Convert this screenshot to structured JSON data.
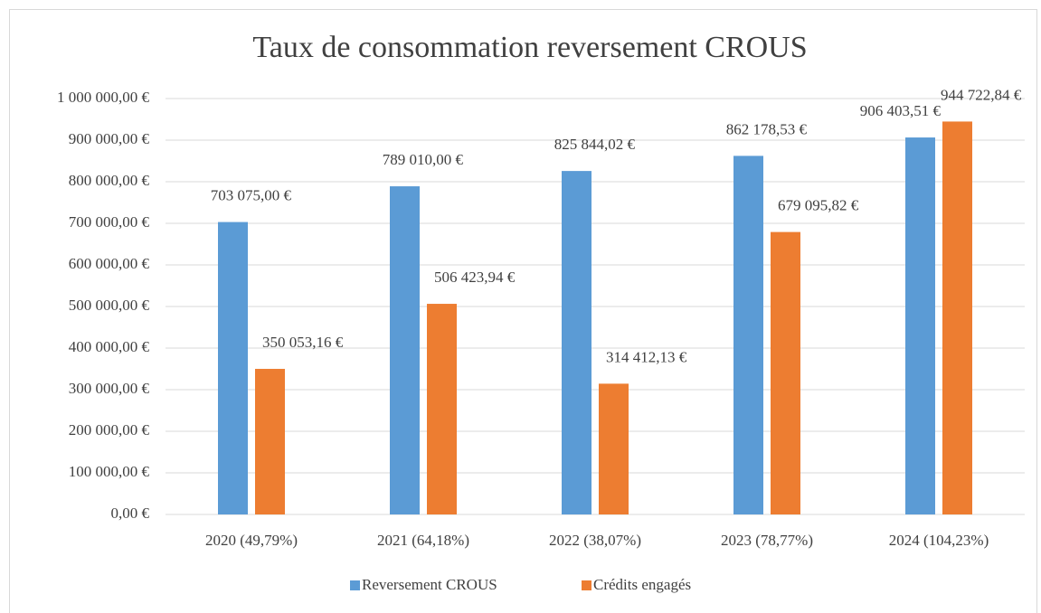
{
  "chart_data": {
    "type": "bar",
    "title": "Taux de consommation reversement CROUS",
    "categories": [
      "2020 (49,79%)",
      "2021 (64,18%)",
      "2022 (38,07%)",
      "2023 (78,77%)",
      "2024 (104,23%)"
    ],
    "series": [
      {
        "name": "Reversement CROUS",
        "color": "#5b9bd5",
        "values": [
          703075,
          789010,
          825844.02,
          862178.53,
          906403.51
        ],
        "value_labels": [
          "703 075,00 €",
          "789 010,00 €",
          "825 844,02 €",
          "862 178,53 €",
          "906 403,51 €"
        ]
      },
      {
        "name": "Crédits engagés",
        "color": "#ed7d31",
        "values": [
          350053.16,
          506423.94,
          314412.13,
          679095.82,
          944722.84
        ],
        "value_labels": [
          "350 053,16 €",
          "506 423,94 €",
          "314 412,13 €",
          "679 095,82 €",
          "944 722,84 €"
        ]
      }
    ],
    "ylim": [
      0,
      1000000
    ],
    "yticks": [
      {
        "value": 0,
        "label": "0,00 €"
      },
      {
        "value": 100000,
        "label": "100 000,00 €"
      },
      {
        "value": 200000,
        "label": "200 000,00 €"
      },
      {
        "value": 300000,
        "label": "300 000,00 €"
      },
      {
        "value": 400000,
        "label": "400 000,00 €"
      },
      {
        "value": 500000,
        "label": "500 000,00 €"
      },
      {
        "value": 600000,
        "label": "600 000,00 €"
      },
      {
        "value": 700000,
        "label": "700 000,00 €"
      },
      {
        "value": 800000,
        "label": "800 000,00 €"
      },
      {
        "value": 900000,
        "label": "900 000,00 €"
      },
      {
        "value": 1000000,
        "label": "1 000 000,00 €"
      }
    ],
    "grid": true,
    "legend": "bottom"
  }
}
